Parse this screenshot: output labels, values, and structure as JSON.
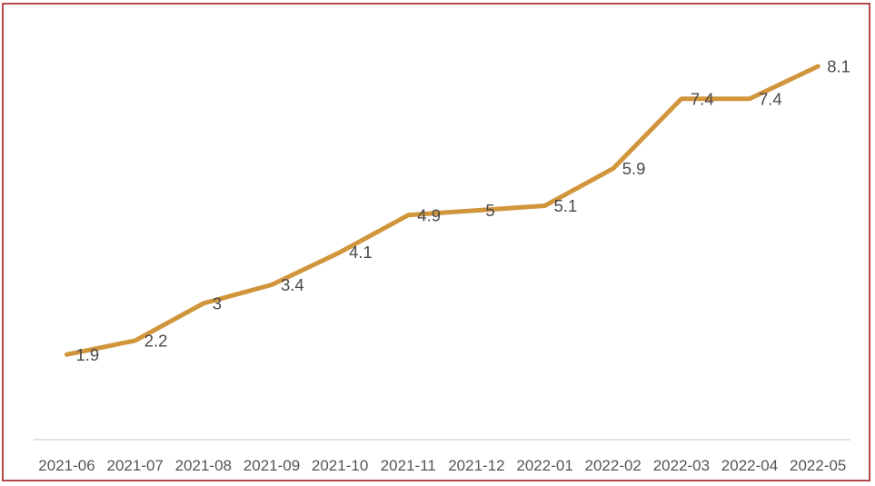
{
  "chart_data": {
    "type": "line",
    "title": "",
    "xlabel": "",
    "ylabel": "",
    "categories": [
      "2021-06",
      "2021-07",
      "2021-08",
      "2021-09",
      "2021-10",
      "2021-11",
      "2021-12",
      "2022-01",
      "2022-02",
      "2022-03",
      "2022-04",
      "2022-05"
    ],
    "values": [
      1.9,
      2.2,
      3,
      3.4,
      4.1,
      4.9,
      5,
      5.1,
      5.9,
      7.4,
      7.4,
      8.1
    ],
    "value_labels": [
      "1.9",
      "2.2",
      "3",
      "3.4",
      "4.1",
      "4.9",
      "5",
      "5.1",
      "5.9",
      "7.4",
      "7.4",
      "8.1"
    ],
    "ylim": [
      0,
      9.5
    ],
    "grid": false,
    "legend_position": "none",
    "data_labels_shown": true,
    "y_axis_shown": false,
    "x_axis_shown": true
  },
  "colors": {
    "line": "#d1953c",
    "data_label_text": "#4a4a4a",
    "axis_line": "#d9d9d9",
    "axis_tick_text": "#555555",
    "frame_border": "#b5494a",
    "background": "#ffffff"
  }
}
